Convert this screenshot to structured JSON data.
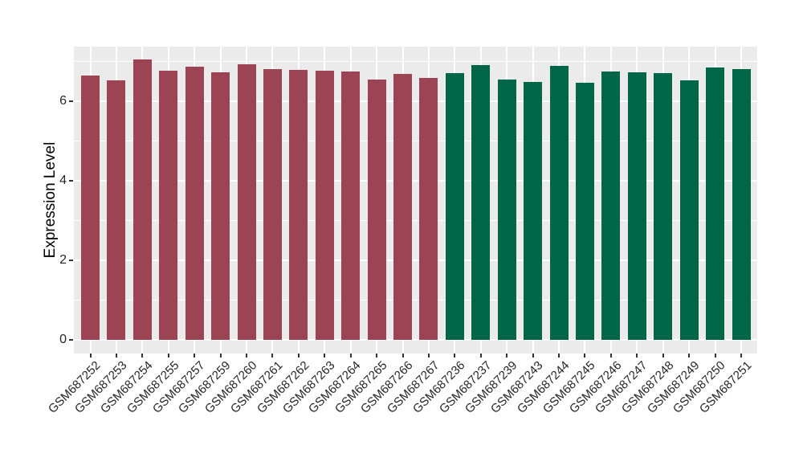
{
  "figure": {
    "ylabel": "Expression Level"
  },
  "chart_data": {
    "type": "bar",
    "title": "",
    "xlabel": "",
    "ylabel": "Expression Level",
    "ylim": [
      0,
      7.4
    ],
    "y_major_ticks": [
      0,
      2,
      4,
      6
    ],
    "y_minor_gridlines": [
      1,
      3,
      5,
      7
    ],
    "grid": true,
    "legend_position": "none",
    "panel_bg": "#EBEBEB",
    "grid_color": "#FFFFFF",
    "tick_color": "#333333",
    "categories": [
      "GSM687252",
      "GSM687253",
      "GSM687254",
      "GSM687255",
      "GSM687257",
      "GSM687259",
      "GSM687260",
      "GSM687261",
      "GSM687262",
      "GSM687263",
      "GSM687264",
      "GSM687265",
      "GSM687266",
      "GSM687267",
      "GSM687236",
      "GSM687237",
      "GSM687239",
      "GSM687243",
      "GSM687244",
      "GSM687245",
      "GSM687246",
      "GSM687247",
      "GSM687248",
      "GSM687249",
      "GSM687250",
      "GSM687251"
    ],
    "values": [
      6.64,
      6.53,
      7.06,
      6.77,
      6.86,
      6.73,
      6.92,
      6.81,
      6.79,
      6.77,
      6.75,
      6.55,
      6.68,
      6.59,
      6.7,
      6.91,
      6.55,
      6.48,
      6.88,
      6.47,
      6.75,
      6.73,
      6.71,
      6.53,
      6.85,
      6.81
    ],
    "groups": [
      "group1",
      "group1",
      "group1",
      "group1",
      "group1",
      "group1",
      "group1",
      "group1",
      "group1",
      "group1",
      "group1",
      "group1",
      "group1",
      "group1",
      "group2",
      "group2",
      "group2",
      "group2",
      "group2",
      "group2",
      "group2",
      "group2",
      "group2",
      "group2",
      "group2",
      "group2"
    ],
    "group_colors": {
      "group1": "#9C4453",
      "group2": "#006647"
    }
  }
}
